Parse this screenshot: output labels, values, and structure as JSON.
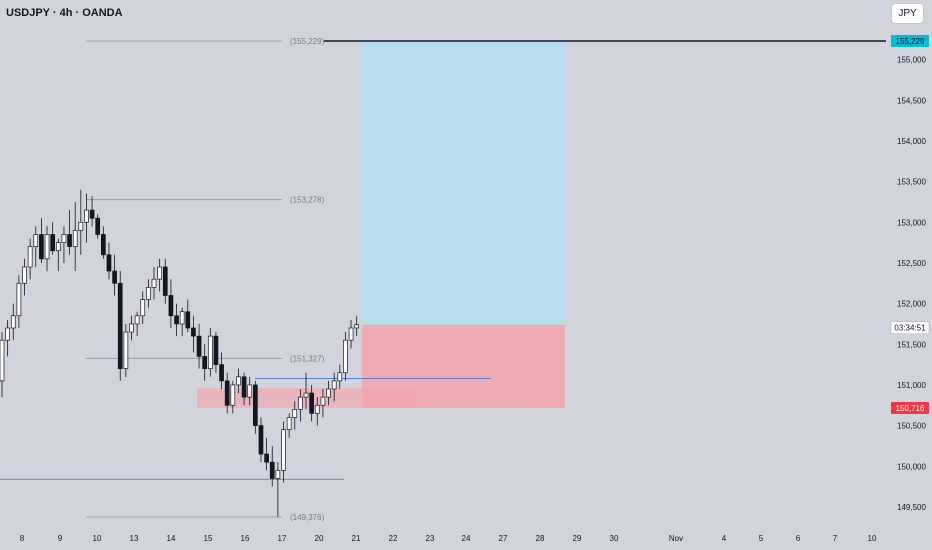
{
  "header": {
    "title": "USDJPY · 4h · OANDA",
    "currency_button": "JPY"
  },
  "chart_data": {
    "type": "candlestick",
    "symbol": "USDJPY",
    "timeframe": "4h",
    "source": "OANDA",
    "y_ticks": [
      "155,000",
      "154,500",
      "154,000",
      "153,500",
      "153,000",
      "152,500",
      "152,000",
      "151,500",
      "151,000",
      "150,500",
      "150,000",
      "149,500"
    ],
    "y_tick_values": [
      155.0,
      154.5,
      154.0,
      153.5,
      153.0,
      152.5,
      152.0,
      151.5,
      151.0,
      150.5,
      150.0,
      149.5
    ],
    "ylim": [
      149.34,
      155.49
    ],
    "x_ticks": [
      "8",
      "9",
      "10",
      "13",
      "14",
      "15",
      "16",
      "17",
      "20",
      "21",
      "22",
      "23",
      "24",
      "27",
      "28",
      "29",
      "30",
      "Nov",
      "4",
      "5",
      "6",
      "7",
      "10"
    ],
    "horizontal_levels": [
      {
        "label": "(155,229)",
        "value": 155.229
      },
      {
        "label": "(153,278)",
        "value": 153.278
      },
      {
        "label": "(151,327)",
        "value": 151.327
      },
      {
        "label": "(149,376)",
        "value": 149.376
      }
    ],
    "price_tags": [
      {
        "label": "155,229",
        "value": 155.229,
        "color": "#00bcd4"
      },
      {
        "label": "150,716",
        "value": 150.716,
        "color": "#f23645"
      }
    ],
    "countdown": "03:34:51",
    "position": {
      "entry": 151.74,
      "target": 155.229,
      "stop": 150.716,
      "target_color": "#b2dfee",
      "stop_color": "#f5a3ad"
    },
    "blue_lines": [
      151.08,
      149.84
    ],
    "zone": {
      "top": 150.96,
      "bottom": 150.72
    },
    "candles": [
      [
        151.05,
        151.65,
        150.85,
        151.55
      ],
      [
        151.55,
        151.8,
        151.35,
        151.7
      ],
      [
        151.7,
        152.0,
        151.55,
        151.85
      ],
      [
        151.85,
        152.35,
        151.7,
        152.25
      ],
      [
        152.25,
        152.55,
        152.1,
        152.45
      ],
      [
        152.45,
        152.8,
        152.3,
        152.7
      ],
      [
        152.7,
        152.95,
        152.45,
        152.85
      ],
      [
        152.85,
        153.05,
        152.5,
        152.55
      ],
      [
        152.55,
        152.95,
        152.4,
        152.85
      ],
      [
        152.85,
        153.0,
        152.6,
        152.65
      ],
      [
        152.65,
        152.8,
        152.4,
        152.75
      ],
      [
        152.75,
        152.95,
        152.5,
        152.85
      ],
      [
        152.85,
        153.15,
        152.6,
        152.7
      ],
      [
        152.7,
        153.25,
        152.4,
        152.9
      ],
      [
        152.9,
        153.4,
        152.6,
        153.0
      ],
      [
        153.0,
        153.35,
        152.75,
        153.15
      ],
      [
        153.15,
        153.32,
        152.95,
        153.05
      ],
      [
        153.05,
        153.1,
        152.8,
        152.85
      ],
      [
        152.85,
        152.95,
        152.55,
        152.6
      ],
      [
        152.6,
        152.75,
        152.3,
        152.4
      ],
      [
        152.4,
        152.6,
        152.1,
        152.25
      ],
      [
        152.25,
        152.4,
        151.05,
        151.2
      ],
      [
        151.2,
        151.75,
        151.1,
        151.65
      ],
      [
        151.65,
        151.85,
        151.55,
        151.75
      ],
      [
        151.75,
        151.9,
        151.6,
        151.85
      ],
      [
        151.85,
        152.15,
        151.75,
        152.05
      ],
      [
        152.05,
        152.3,
        151.95,
        152.2
      ],
      [
        152.2,
        152.45,
        152.05,
        152.3
      ],
      [
        152.3,
        152.55,
        152.15,
        152.45
      ],
      [
        152.45,
        152.55,
        152.0,
        152.1
      ],
      [
        152.1,
        152.3,
        151.7,
        151.85
      ],
      [
        151.85,
        152.0,
        151.6,
        151.75
      ],
      [
        151.75,
        151.95,
        151.6,
        151.9
      ],
      [
        151.9,
        152.05,
        151.65,
        151.7
      ],
      [
        151.7,
        151.85,
        151.4,
        151.6
      ],
      [
        151.6,
        151.75,
        151.2,
        151.35
      ],
      [
        151.35,
        151.5,
        151.05,
        151.2
      ],
      [
        151.2,
        151.7,
        151.1,
        151.6
      ],
      [
        151.6,
        151.65,
        151.15,
        151.25
      ],
      [
        151.25,
        151.4,
        150.95,
        151.05
      ],
      [
        151.05,
        151.15,
        150.65,
        150.75
      ],
      [
        150.75,
        151.05,
        150.65,
        151.0
      ],
      [
        151.0,
        151.2,
        150.9,
        151.1
      ],
      [
        151.1,
        151.15,
        150.75,
        150.85
      ],
      [
        150.85,
        151.1,
        150.75,
        151.0
      ],
      [
        151.0,
        151.05,
        150.4,
        150.5
      ],
      [
        150.5,
        150.6,
        150.05,
        150.15
      ],
      [
        150.15,
        150.35,
        149.95,
        150.05
      ],
      [
        150.05,
        150.25,
        149.75,
        149.85
      ],
      [
        149.85,
        150.05,
        149.38,
        149.95
      ],
      [
        149.95,
        150.55,
        149.8,
        150.45
      ],
      [
        150.45,
        150.65,
        150.35,
        150.6
      ],
      [
        150.6,
        150.8,
        150.45,
        150.7
      ],
      [
        150.7,
        150.95,
        150.55,
        150.85
      ],
      [
        150.85,
        151.15,
        150.7,
        150.9
      ],
      [
        150.9,
        151.0,
        150.55,
        150.65
      ],
      [
        150.65,
        150.85,
        150.5,
        150.75
      ],
      [
        150.75,
        150.95,
        150.6,
        150.85
      ],
      [
        150.85,
        151.05,
        150.75,
        150.95
      ],
      [
        150.95,
        151.15,
        150.8,
        151.05
      ],
      [
        151.05,
        151.25,
        150.95,
        151.15
      ],
      [
        151.15,
        151.65,
        151.05,
        151.55
      ],
      [
        151.55,
        151.8,
        151.45,
        151.7
      ],
      [
        151.7,
        151.85,
        151.6,
        151.74
      ]
    ]
  }
}
